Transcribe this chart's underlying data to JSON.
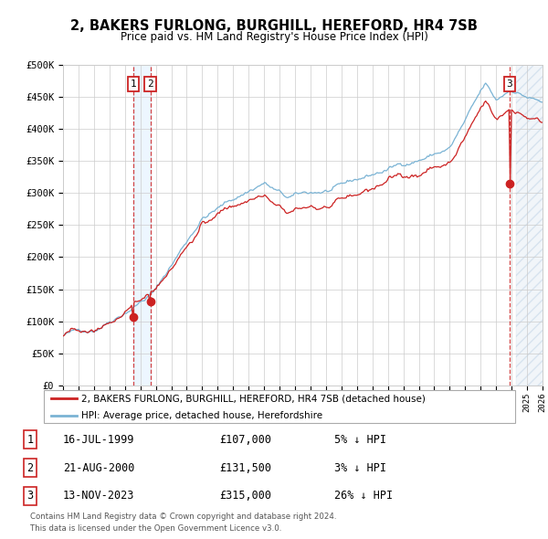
{
  "title": "2, BAKERS FURLONG, BURGHILL, HEREFORD, HR4 7SB",
  "subtitle": "Price paid vs. HM Land Registry's House Price Index (HPI)",
  "ylabel_ticks": [
    "£0",
    "£50K",
    "£100K",
    "£150K",
    "£200K",
    "£250K",
    "£300K",
    "£350K",
    "£400K",
    "£450K",
    "£500K"
  ],
  "ytick_vals": [
    0,
    50000,
    100000,
    150000,
    200000,
    250000,
    300000,
    350000,
    400000,
    450000,
    500000
  ],
  "xlim": [
    1995,
    2026
  ],
  "ylim": [
    0,
    500000
  ],
  "sales": [
    {
      "num": 1,
      "date_x": 1999.54,
      "price": 107000,
      "label": "16-JUL-1999",
      "price_str": "£107,000",
      "pct": "5%",
      "dir": "↓"
    },
    {
      "num": 2,
      "date_x": 2000.64,
      "price": 131500,
      "label": "21-AUG-2000",
      "price_str": "£131,500",
      "pct": "3%",
      "dir": "↓"
    },
    {
      "num": 3,
      "date_x": 2023.87,
      "price": 315000,
      "label": "13-NOV-2023",
      "price_str": "£315,000",
      "pct": "26%",
      "dir": "↓"
    }
  ],
  "legend_house": "2, BAKERS FURLONG, BURGHILL, HEREFORD, HR4 7SB (detached house)",
  "legend_hpi": "HPI: Average price, detached house, Herefordshire",
  "footer1": "Contains HM Land Registry data © Crown copyright and database right 2024.",
  "footer2": "This data is licensed under the Open Government Licence v3.0.",
  "hpi_color": "#7ab3d4",
  "house_color": "#cc2222",
  "vline_color": "#cc2222",
  "box_color": "#cc2222",
  "fill_color": "#ddeeff",
  "grid_color": "#cccccc",
  "hatch_fill_color": "#dde8f0"
}
